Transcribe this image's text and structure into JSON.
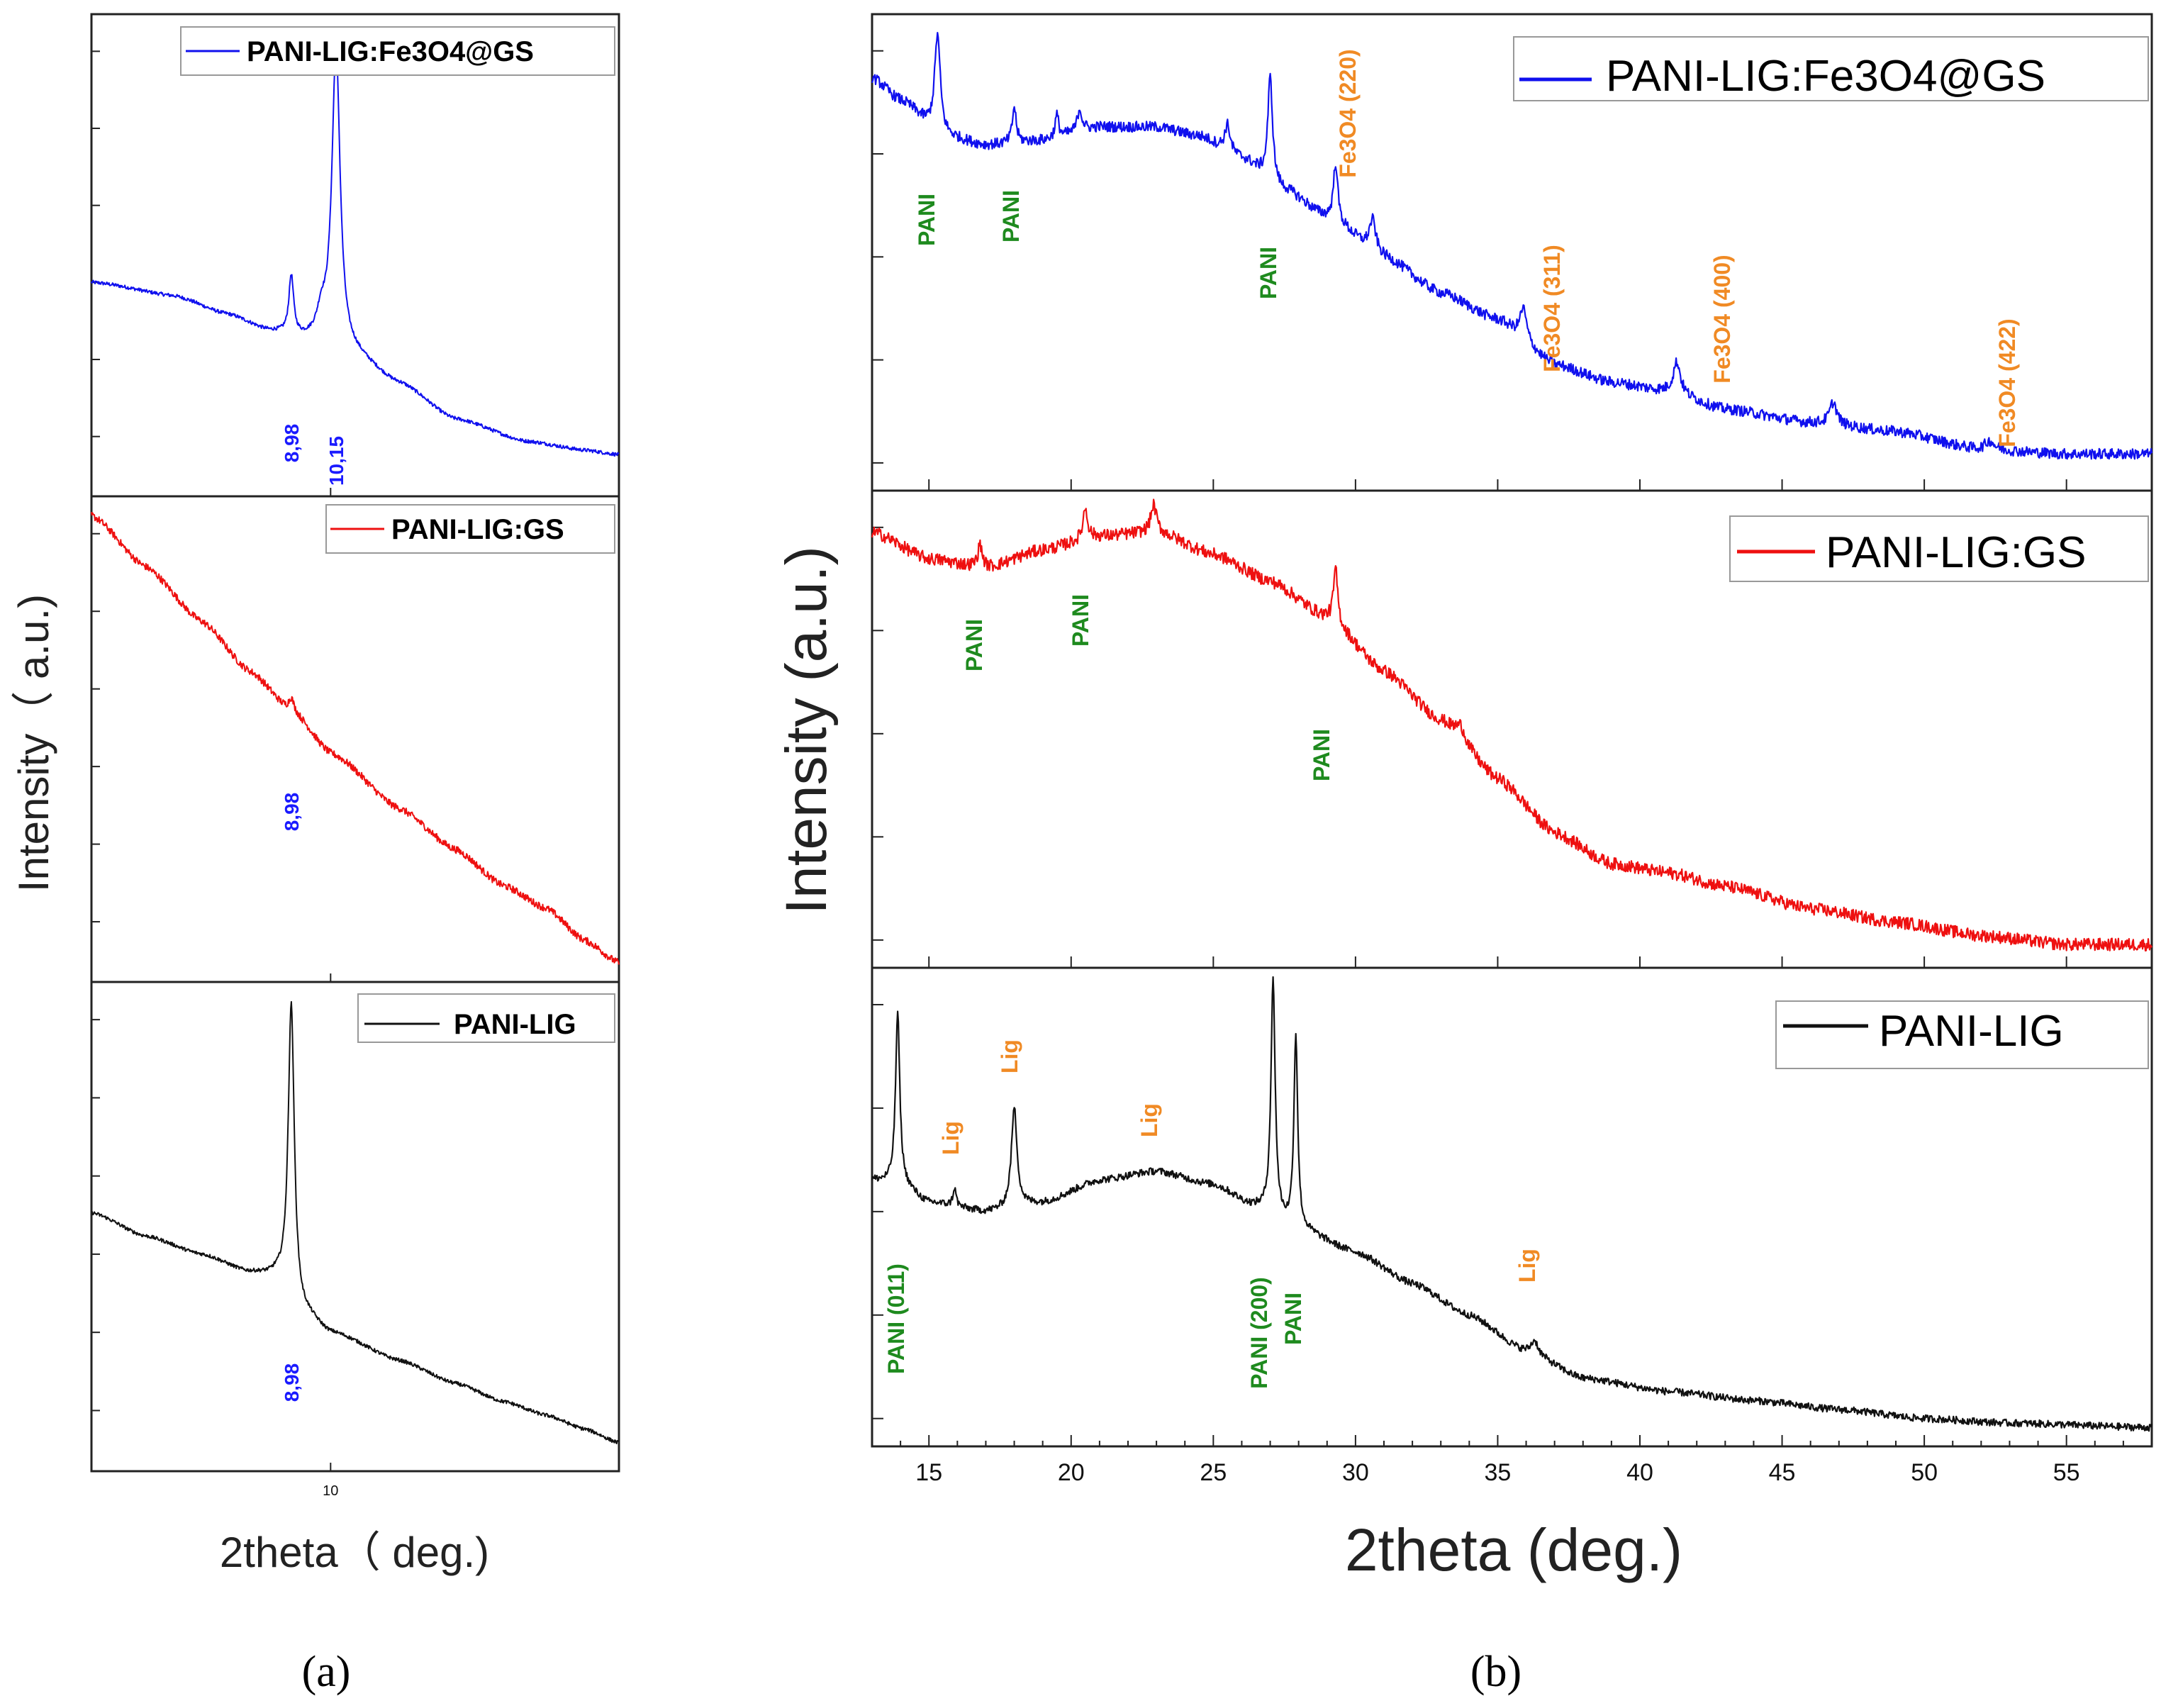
{
  "chart_data": [
    {
      "id": "a",
      "panel_label": "(a)",
      "type": "line",
      "xlabel": "2theta（ deg.)",
      "ylabel": "Intensity（ a.u.)",
      "xlim": [
        5.2,
        22
      ],
      "x_ticks": [
        10
      ],
      "x_tick_labels": [
        "10"
      ],
      "subplots": [
        {
          "name": "PANI-LIG:Fe3O4@GS",
          "color": "#1010ee",
          "legend": "PANI-LIG:Fe3O4@GS",
          "ylim": [
            0,
            1
          ],
          "baseline": [
            [
              5.2,
              0.44
            ],
            [
              6.5,
              0.41
            ],
            [
              7.5,
              0.37
            ],
            [
              8.5,
              0.33
            ],
            [
              9.4,
              0.31
            ],
            [
              10.6,
              0.28
            ],
            [
              12,
              0.22
            ],
            [
              14,
              0.14
            ],
            [
              17,
              0.09
            ],
            [
              20,
              0.07
            ],
            [
              22,
              0.06
            ]
          ],
          "peaks": [
            {
              "x": 8.98,
              "h": 0.13,
              "w": 0.07
            },
            {
              "x": 9.75,
              "h": 0.05,
              "w": 0.14
            },
            {
              "x": 10.15,
              "h": 0.66,
              "w": 0.14
            }
          ],
          "noise": 0.004,
          "annotations": [
            {
              "text": "8,98",
              "x": 8.98,
              "color": "#1a1aff"
            },
            {
              "text": "10,15",
              "x": 10.15,
              "color": "#1a1aff"
            }
          ]
        },
        {
          "name": "PANI-LIG:GS",
          "color": "#ee1010",
          "legend": "PANI-LIG:GS",
          "ylim": [
            0,
            1
          ],
          "baseline": [
            [
              5.2,
              0.99
            ],
            [
              6,
              0.88
            ],
            [
              7,
              0.76
            ],
            [
              8,
              0.65
            ],
            [
              9,
              0.56
            ],
            [
              10,
              0.47
            ],
            [
              12,
              0.35
            ],
            [
              14,
              0.26
            ],
            [
              16,
              0.18
            ],
            [
              18,
              0.13
            ],
            [
              20,
              0.06
            ],
            [
              22,
              0.01
            ]
          ],
          "peaks": [
            {
              "x": 8.98,
              "h": 0.03,
              "w": 0.08
            }
          ],
          "noise": 0.008,
          "annotations": [
            {
              "text": "8,98",
              "x": 8.98,
              "color": "#1a1aff"
            }
          ]
        },
        {
          "name": "PANI-LIG",
          "color": "#111111",
          "legend": "PANI-LIG",
          "ylim": [
            0,
            1
          ],
          "baseline": [
            [
              5.2,
              0.53
            ],
            [
              6,
              0.48
            ],
            [
              7,
              0.44
            ],
            [
              8,
              0.4
            ],
            [
              8.6,
              0.39
            ],
            [
              9.3,
              0.31
            ],
            [
              10,
              0.27
            ],
            [
              12,
              0.21
            ],
            [
              14,
              0.16
            ],
            [
              16,
              0.12
            ],
            [
              18,
              0.09
            ],
            [
              20,
              0.06
            ],
            [
              22,
              0.03
            ]
          ],
          "peaks": [
            {
              "x": 8.98,
              "h": 0.64,
              "w": 0.09
            }
          ],
          "noise": 0.004,
          "annotations": [
            {
              "text": "8,98",
              "x": 8.98,
              "color": "#1a1aff"
            }
          ]
        }
      ]
    },
    {
      "id": "b",
      "panel_label": "(b)",
      "type": "line",
      "xlabel": "2theta (deg.)",
      "ylabel": "Intensity (a.u.)",
      "xlim": [
        13,
        58
      ],
      "x_ticks": [
        15,
        20,
        25,
        30,
        35,
        40,
        45,
        50,
        55
      ],
      "x_tick_labels": [
        "15",
        "20",
        "25",
        "30",
        "35",
        "40",
        "45",
        "50",
        "55"
      ],
      "subplots": [
        {
          "name": "PANI-LIG:Fe3O4@GS",
          "color": "#1010ee",
          "legend": "PANI-LIG:Fe3O4@GS",
          "ylim": [
            0,
            1
          ],
          "baseline": [
            [
              13,
              0.89
            ],
            [
              14,
              0.84
            ],
            [
              15.5,
              0.76
            ],
            [
              17,
              0.74
            ],
            [
              19,
              0.75
            ],
            [
              21,
              0.78
            ],
            [
              23,
              0.78
            ],
            [
              24.5,
              0.76
            ],
            [
              26,
              0.71
            ],
            [
              27.5,
              0.64
            ],
            [
              29,
              0.58
            ],
            [
              31,
              0.49
            ],
            [
              33,
              0.41
            ],
            [
              35,
              0.35
            ],
            [
              37,
              0.25
            ],
            [
              39,
              0.21
            ],
            [
              41,
              0.19
            ],
            [
              43,
              0.15
            ],
            [
              46,
              0.12
            ],
            [
              49,
              0.1
            ],
            [
              52,
              0.06
            ],
            [
              55,
              0.05
            ],
            [
              58,
              0.05
            ]
          ],
          "peaks": [
            {
              "x": 15.3,
              "h": 0.22,
              "w": 0.12
            },
            {
              "x": 18.0,
              "h": 0.08,
              "w": 0.08
            },
            {
              "x": 19.5,
              "h": 0.05,
              "w": 0.08
            },
            {
              "x": 20.3,
              "h": 0.05,
              "w": 0.1
            },
            {
              "x": 25.5,
              "h": 0.06,
              "w": 0.12
            },
            {
              "x": 27.0,
              "h": 0.23,
              "w": 0.1
            },
            {
              "x": 29.3,
              "h": 0.13,
              "w": 0.09
            },
            {
              "x": 30.6,
              "h": 0.07,
              "w": 0.14
            },
            {
              "x": 35.9,
              "h": 0.07,
              "w": 0.14
            },
            {
              "x": 41.3,
              "h": 0.07,
              "w": 0.15
            },
            {
              "x": 46.8,
              "h": 0.05,
              "w": 0.15
            },
            {
              "x": 52.3,
              "h": 0.02,
              "w": 0.2
            }
          ],
          "noise": 0.012,
          "legend_pos": "top-right",
          "annotations": [
            {
              "text": "PANI",
              "x": 15.0,
              "color": "#1e8a1e"
            },
            {
              "text": "PANI",
              "x": 18.0,
              "color": "#1e8a1e"
            },
            {
              "text": "PANI",
              "x": 27.0,
              "color": "#1e8a1e"
            },
            {
              "text": "Fe3O4 (220)",
              "x": 30.2,
              "color": "#f08a24"
            },
            {
              "text": "Fe3O4 (311)",
              "x": 36.8,
              "color": "#f08a24"
            },
            {
              "text": "Fe3O4 (400)",
              "x": 42.5,
              "color": "#f08a24"
            },
            {
              "text": "Fe3O4 (422)",
              "x": 53.0,
              "color": "#f08a24"
            }
          ]
        },
        {
          "name": "PANI-LIG:GS",
          "color": "#ee1010",
          "legend": "PANI-LIG:GS",
          "ylim": [
            0,
            1
          ],
          "baseline": [
            [
              13,
              0.94
            ],
            [
              15,
              0.88
            ],
            [
              17,
              0.86
            ],
            [
              19,
              0.9
            ],
            [
              21,
              0.93
            ],
            [
              23,
              0.94
            ],
            [
              25,
              0.89
            ],
            [
              27,
              0.83
            ],
            [
              29,
              0.75
            ],
            [
              31,
              0.63
            ],
            [
              33,
              0.52
            ],
            [
              35,
              0.39
            ],
            [
              37,
              0.27
            ],
            [
              39,
              0.2
            ],
            [
              41,
              0.18
            ],
            [
              43,
              0.15
            ],
            [
              46,
              0.1
            ],
            [
              49,
              0.07
            ],
            [
              52,
              0.04
            ],
            [
              55,
              0.02
            ],
            [
              58,
              0.02
            ]
          ],
          "peaks": [
            {
              "x": 16.8,
              "h": 0.05,
              "w": 0.1
            },
            {
              "x": 20.5,
              "h": 0.07,
              "w": 0.1
            },
            {
              "x": 22.9,
              "h": 0.06,
              "w": 0.12
            },
            {
              "x": 29.3,
              "h": 0.12,
              "w": 0.09
            },
            {
              "x": 33.7,
              "h": 0.03,
              "w": 0.2
            }
          ],
          "noise": 0.014,
          "legend_pos": "top-right",
          "annotations": [
            {
              "text": "PANI",
              "x": 17.0,
              "color": "#1e8a1e"
            },
            {
              "text": "PANI",
              "x": 20.5,
              "color": "#1e8a1e"
            },
            {
              "text": "PANI",
              "x": 29.0,
              "color": "#1e8a1e"
            }
          ]
        },
        {
          "name": "PANI-LIG",
          "color": "#111111",
          "legend": "PANI-LIG",
          "ylim": [
            0,
            1
          ],
          "baseline": [
            [
              13,
              0.56
            ],
            [
              14,
              0.55
            ],
            [
              15,
              0.51
            ],
            [
              17,
              0.49
            ],
            [
              19,
              0.51
            ],
            [
              21,
              0.56
            ],
            [
              23,
              0.58
            ],
            [
              25,
              0.55
            ],
            [
              26.5,
              0.5
            ],
            [
              28,
              0.45
            ],
            [
              30,
              0.4
            ],
            [
              32,
              0.33
            ],
            [
              34,
              0.26
            ],
            [
              36,
              0.18
            ],
            [
              38,
              0.12
            ],
            [
              41,
              0.09
            ],
            [
              44,
              0.07
            ],
            [
              47,
              0.05
            ],
            [
              50,
              0.03
            ],
            [
              53,
              0.02
            ],
            [
              58,
              0.01
            ]
          ],
          "peaks": [
            {
              "x": 13.9,
              "h": 0.38,
              "w": 0.09
            },
            {
              "x": 15.9,
              "h": 0.04,
              "w": 0.07
            },
            {
              "x": 18.0,
              "h": 0.22,
              "w": 0.12
            },
            {
              "x": 27.1,
              "h": 0.52,
              "w": 0.09
            },
            {
              "x": 27.9,
              "h": 0.43,
              "w": 0.08
            },
            {
              "x": 36.3,
              "h": 0.03,
              "w": 0.15
            }
          ],
          "noise": 0.008,
          "legend_pos": "top-right",
          "annotations": [
            {
              "text": "PANI (011)",
              "x": 14.0,
              "color": "#1e8a1e"
            },
            {
              "text": "Lig",
              "x": 15.9,
              "color": "#f08a24"
            },
            {
              "text": "Lig",
              "x": 18.1,
              "color": "#f08a24"
            },
            {
              "text": "Lig",
              "x": 23.0,
              "color": "#f08a24"
            },
            {
              "text": "PANI (200)",
              "x": 26.7,
              "color": "#1e8a1e"
            },
            {
              "text": "PANI",
              "x": 28.0,
              "color": "#1e8a1e"
            },
            {
              "text": "Lig",
              "x": 36.3,
              "color": "#f08a24"
            }
          ]
        }
      ]
    }
  ]
}
